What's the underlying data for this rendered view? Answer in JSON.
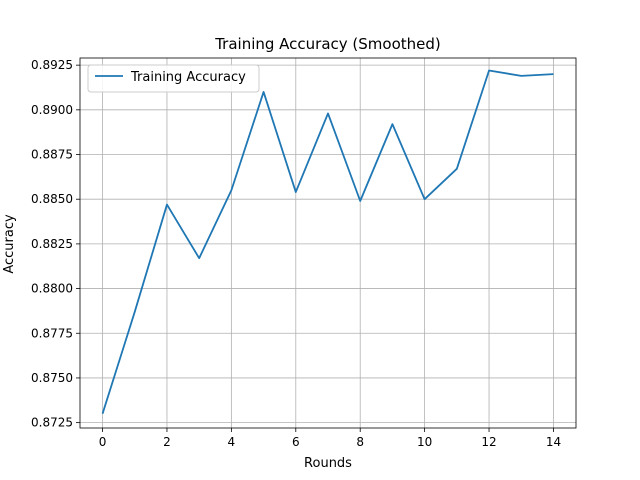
{
  "chart_data": {
    "type": "line",
    "title": "Training Accuracy (Smoothed)",
    "xlabel": "Rounds",
    "ylabel": "Accuracy",
    "xlim": [
      -0.7,
      14.7
    ],
    "ylim": [
      0.8722,
      0.8929
    ],
    "xticks": [
      0,
      2,
      4,
      6,
      8,
      10,
      12,
      14
    ],
    "xtick_labels": [
      "0",
      "2",
      "4",
      "6",
      "8",
      "10",
      "12",
      "14"
    ],
    "yticks": [
      0.8725,
      0.875,
      0.8775,
      0.88,
      0.8825,
      0.885,
      0.8875,
      0.89,
      0.8925
    ],
    "ytick_labels": [
      "0.8725",
      "0.8750",
      "0.8775",
      "0.8800",
      "0.8825",
      "0.8850",
      "0.8875",
      "0.8900",
      "0.8925"
    ],
    "grid": true,
    "legend_placement": "upper-left",
    "series": [
      {
        "name": "Training Accuracy",
        "color": "#1f77b4",
        "x": [
          0,
          1,
          2,
          3,
          4,
          5,
          6,
          7,
          8,
          9,
          10,
          11,
          12,
          13,
          14
        ],
        "values": [
          0.873,
          0.8787,
          0.8847,
          0.8817,
          0.8855,
          0.891,
          0.8854,
          0.8898,
          0.8849,
          0.8892,
          0.885,
          0.8867,
          0.8922,
          0.8919,
          0.892
        ]
      }
    ]
  }
}
